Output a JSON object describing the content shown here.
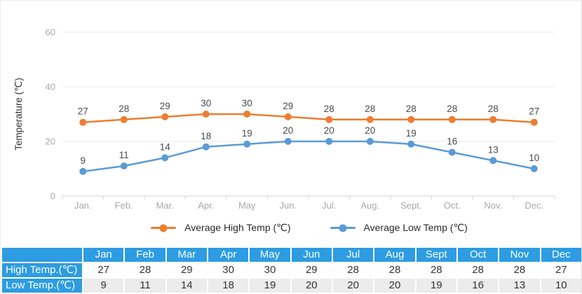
{
  "chart": {
    "y_axis_title": "Temperature (℃)"
  },
  "chart_data": {
    "type": "line",
    "categories": [
      "Jan.",
      "Feb.",
      "Mar.",
      "Apr.",
      "May",
      "Jun.",
      "Jul.",
      "Aug.",
      "Sept.",
      "Oct.",
      "Nov.",
      "Dec."
    ],
    "series": [
      {
        "name": "Average High Temp (℃)",
        "color": "#ED7D31",
        "values": [
          27,
          28,
          29,
          30,
          30,
          29,
          28,
          28,
          28,
          28,
          28,
          27
        ]
      },
      {
        "name": "Average Low Temp (℃)",
        "color": "#5B9BD5",
        "values": [
          9,
          11,
          14,
          18,
          19,
          20,
          20,
          20,
          19,
          16,
          13,
          10
        ]
      }
    ],
    "ylabel": "Temperature (℃)",
    "xlabel": "",
    "ylim": [
      0,
      60
    ],
    "y_ticks": [
      0,
      20,
      40,
      60
    ],
    "grid": true,
    "legend_position": "bottom",
    "data_labels": true
  },
  "table": {
    "corner_label": "",
    "columns": [
      "Jan",
      "Feb",
      "Mar",
      "Apr",
      "May",
      "Jun",
      "Jul",
      "Aug",
      "Sept",
      "Oct",
      "Nov",
      "Dec"
    ],
    "rows": [
      {
        "label": "High Temp.(℃)",
        "values": [
          27,
          28,
          29,
          30,
          30,
          29,
          28,
          28,
          28,
          28,
          28,
          27
        ]
      },
      {
        "label": "Low Temp.(℃)",
        "values": [
          9,
          11,
          14,
          18,
          19,
          20,
          20,
          20,
          19,
          16,
          13,
          10
        ]
      }
    ]
  },
  "colors": {
    "high_series": "#ED7D31",
    "low_series": "#5B9BD5",
    "table_header_bg": "#2D9CE2",
    "table_row_high_bg": "#FFFFFF",
    "table_row_low_bg": "#ECECEC",
    "grid_line": "#E9E9E9",
    "axis_line": "#D4D4D4",
    "tick_label": "#A8A8A8",
    "data_label": "#4A4A4A",
    "axis_title": "#333333"
  }
}
